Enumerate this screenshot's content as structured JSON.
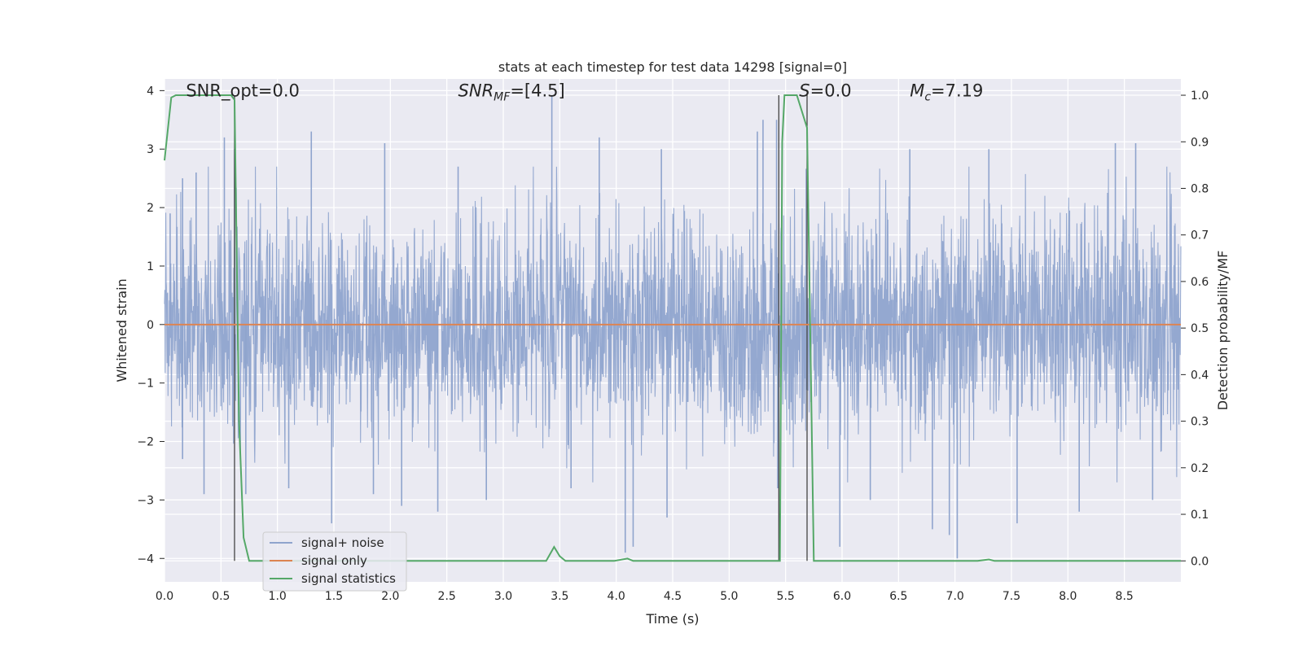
{
  "chart_data": {
    "type": "line",
    "title": "stats at each timestep for test data 14298 [signal=0]",
    "xlabel": "Time (s)",
    "ylabel_left": "Whitened strain",
    "ylabel_right": "Detection probability/MF",
    "xlim": [
      0.0,
      9.0
    ],
    "ylim_left": [
      -4.4,
      4.2
    ],
    "ylim_right": [
      -0.045,
      1.035
    ],
    "x_ticks": [
      "0.0",
      "0.5",
      "1.0",
      "1.5",
      "2.0",
      "2.5",
      "3.0",
      "3.5",
      "4.0",
      "4.5",
      "5.0",
      "5.5",
      "6.0",
      "6.5",
      "7.0",
      "7.5",
      "8.0",
      "8.5"
    ],
    "y_left_ticks": [
      "4",
      "3",
      "2",
      "1",
      "0",
      "−1",
      "−2",
      "−3",
      "−4"
    ],
    "y_right_ticks": [
      "1.0",
      "0.9",
      "0.8",
      "0.7",
      "0.6",
      "0.5",
      "0.4",
      "0.3",
      "0.2",
      "0.1",
      "0.0"
    ],
    "grid": true,
    "legend_position": "lower-left",
    "annotations": [
      {
        "key": "snr_opt",
        "text": "SNR_opt=0.0",
        "x": 0.19,
        "y": 4.0
      },
      {
        "key": "snr_mf",
        "text": "SNR_MF=[4.5]",
        "x": 2.6,
        "y": 4.0
      },
      {
        "key": "s",
        "text": "S=0.0",
        "x": 5.62,
        "y": 4.0
      },
      {
        "key": "mc",
        "text": "M_c=7.19",
        "x": 6.6,
        "y": 4.0
      }
    ],
    "vertical_markers": [
      {
        "x": 0.62,
        "ymin": 0.0,
        "ymax": 1.0
      },
      {
        "x": 5.44,
        "ymin": 0.0,
        "ymax": 1.0
      },
      {
        "x": 5.69,
        "ymin": 0.0,
        "ymax": 1.0
      }
    ],
    "series": [
      {
        "name": "signal+ noise",
        "axis": "left",
        "color": "#8fa4cd",
        "kind": "noise",
        "sample_rate_hz": 2048,
        "envelope_typical": 1.5,
        "peak_values": [
          {
            "x": 0.05,
            "y": 1.9
          },
          {
            "x": 0.16,
            "y": 2.5
          },
          {
            "x": 0.16,
            "y": -2.3
          },
          {
            "x": 0.28,
            "y": 2.6
          },
          {
            "x": 0.35,
            "y": -2.9
          },
          {
            "x": 0.53,
            "y": 3.2
          },
          {
            "x": 0.62,
            "y": 3.0
          },
          {
            "x": 0.72,
            "y": -2.9
          },
          {
            "x": 1.1,
            "y": -2.8
          },
          {
            "x": 1.3,
            "y": 3.3
          },
          {
            "x": 1.48,
            "y": -3.4
          },
          {
            "x": 1.85,
            "y": -2.9
          },
          {
            "x": 1.95,
            "y": 3.1
          },
          {
            "x": 2.1,
            "y": -3.1
          },
          {
            "x": 2.42,
            "y": -3.2
          },
          {
            "x": 2.6,
            "y": 2.7
          },
          {
            "x": 2.85,
            "y": -3.0
          },
          {
            "x": 3.43,
            "y": 3.9
          },
          {
            "x": 3.6,
            "y": -2.8
          },
          {
            "x": 3.85,
            "y": 3.2
          },
          {
            "x": 4.08,
            "y": -3.9
          },
          {
            "x": 4.15,
            "y": -3.8
          },
          {
            "x": 4.4,
            "y": 3.0
          },
          {
            "x": 4.45,
            "y": -3.3
          },
          {
            "x": 5.25,
            "y": 3.3
          },
          {
            "x": 5.3,
            "y": 3.5
          },
          {
            "x": 5.42,
            "y": 3.5
          },
          {
            "x": 5.43,
            "y": -2.8
          },
          {
            "x": 5.98,
            "y": -3.8
          },
          {
            "x": 6.25,
            "y": -3.0
          },
          {
            "x": 6.6,
            "y": 3.0
          },
          {
            "x": 6.8,
            "y": -3.5
          },
          {
            "x": 6.95,
            "y": -3.6
          },
          {
            "x": 7.02,
            "y": -4.0
          },
          {
            "x": 7.3,
            "y": 3.0
          },
          {
            "x": 7.55,
            "y": -3.4
          },
          {
            "x": 8.1,
            "y": -3.2
          },
          {
            "x": 8.42,
            "y": 3.1
          },
          {
            "x": 8.6,
            "y": 3.1
          },
          {
            "x": 8.75,
            "y": -3.0
          }
        ]
      },
      {
        "name": "signal only",
        "axis": "left",
        "color": "#dd8452",
        "x": [
          0.0,
          9.0
        ],
        "y": [
          0.0,
          0.0
        ]
      },
      {
        "name": "signal statistics",
        "axis": "right",
        "color": "#55a868",
        "x": [
          0.0,
          0.06,
          0.1,
          0.59,
          0.62,
          0.66,
          0.7,
          0.75,
          3.38,
          3.45,
          3.5,
          3.55,
          3.98,
          4.1,
          4.15,
          5.45,
          5.47,
          5.49,
          5.52,
          5.6,
          5.69,
          5.75,
          7.2,
          7.3,
          7.35,
          9.0
        ],
        "y": [
          0.86,
          0.995,
          1.0,
          1.0,
          0.99,
          0.3,
          0.05,
          0.0,
          0.0,
          0.03,
          0.01,
          0.0,
          0.0,
          0.005,
          0.0,
          0.0,
          0.9,
          1.0,
          1.0,
          1.0,
          0.93,
          0.0,
          0.0,
          0.003,
          0.0,
          0.0
        ]
      }
    ]
  }
}
